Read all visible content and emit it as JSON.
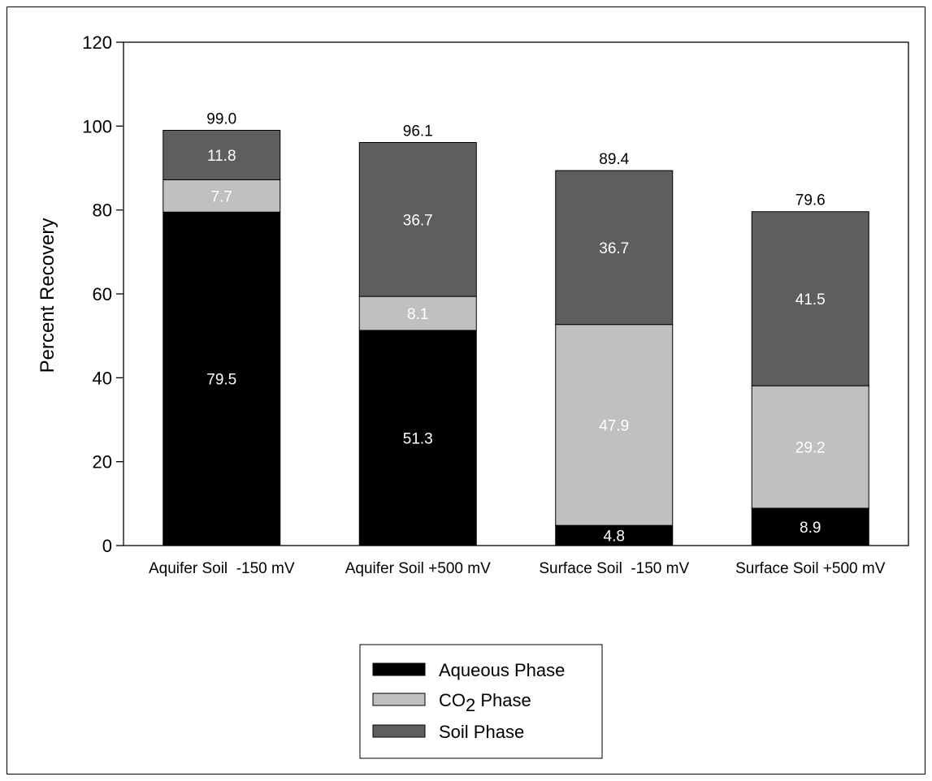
{
  "chart_data": {
    "type": "bar",
    "stacked": true,
    "ylabel": "Percent Recovery",
    "xlabel": "",
    "ylim": [
      0,
      120
    ],
    "yticks": [
      0,
      20,
      40,
      60,
      80,
      100,
      120
    ],
    "grid": false,
    "legend_position": "bottom-center",
    "categories": [
      "Aquifer Soil  -150 mV",
      "Aquifer Soil +500 mV",
      "Surface Soil  -150 mV",
      "Surface Soil +500 mV"
    ],
    "totals": [
      "99.0",
      "96.1",
      "89.4",
      "79.6"
    ],
    "series": [
      {
        "name": "Aqueous Phase",
        "color": "#000000",
        "label_color": "#ffffff",
        "values": [
          79.5,
          51.3,
          4.8,
          8.9
        ]
      },
      {
        "name": "CO2 Phase",
        "legend_main": "CO",
        "legend_sub": "2",
        "legend_tail": " Phase",
        "color": "#c0c0c0",
        "label_color": "#ffffff",
        "values": [
          7.7,
          8.1,
          47.9,
          29.2
        ]
      },
      {
        "name": "Soil Phase",
        "color": "#5e5e5e",
        "label_color": "#ffffff",
        "values": [
          11.8,
          36.7,
          36.7,
          41.5
        ]
      }
    ]
  }
}
